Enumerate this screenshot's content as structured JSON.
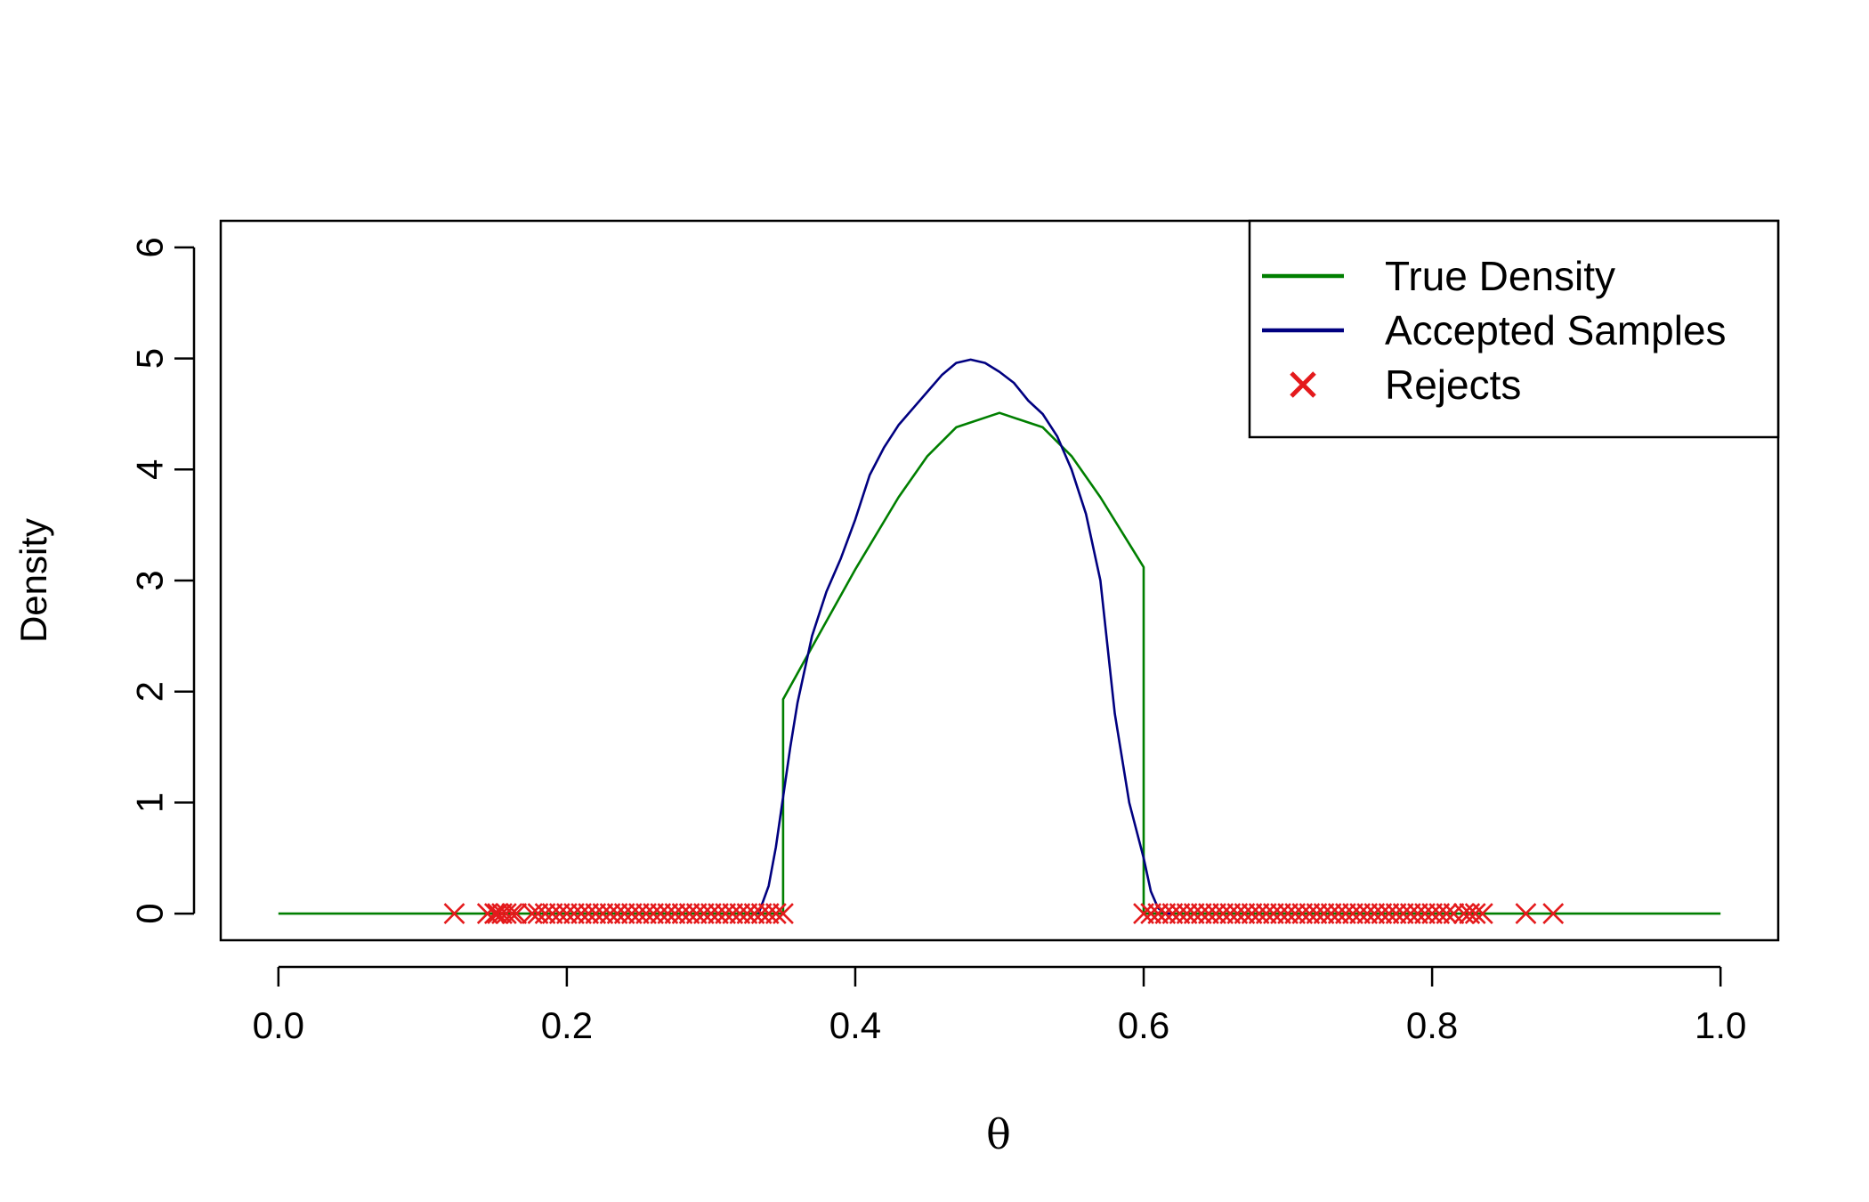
{
  "chart_data": {
    "type": "line",
    "title": "",
    "xlabel": "θ",
    "ylabel": "Density",
    "xlim": [
      -0.04,
      1.04
    ],
    "ylim": [
      -0.24,
      6.24
    ],
    "x_ticks": [
      0.0,
      0.2,
      0.4,
      0.6,
      0.8,
      1.0
    ],
    "x_tick_labels": [
      "0.0",
      "0.2",
      "0.4",
      "0.6",
      "0.8",
      "1.0"
    ],
    "y_ticks": [
      0,
      1,
      2,
      3,
      4,
      5,
      6
    ],
    "y_tick_labels": [
      "0",
      "1",
      "2",
      "3",
      "4",
      "5",
      "6"
    ],
    "grid": false,
    "legend_position": "top-right",
    "legend": [
      {
        "label": "True Density",
        "kind": "line",
        "color": "#007F00"
      },
      {
        "label": "Accepted Samples",
        "kind": "line",
        "color": "#000080"
      },
      {
        "label": "Rejects",
        "kind": "x",
        "color": "#E41A1C"
      }
    ],
    "series": [
      {
        "name": "True Density",
        "kind": "line",
        "color": "#007F00",
        "x": [
          0.0,
          0.35,
          0.35,
          0.37,
          0.4,
          0.43,
          0.45,
          0.47,
          0.5,
          0.53,
          0.55,
          0.57,
          0.6,
          0.6,
          1.0
        ],
        "y": [
          0.0,
          0.0,
          1.93,
          2.4,
          3.1,
          3.75,
          4.12,
          4.38,
          4.51,
          4.38,
          4.12,
          3.75,
          3.12,
          0.0,
          0.0
        ]
      },
      {
        "name": "Accepted Samples",
        "kind": "line",
        "color": "#000080",
        "x": [
          0.333,
          0.34,
          0.345,
          0.35,
          0.355,
          0.36,
          0.37,
          0.38,
          0.39,
          0.4,
          0.41,
          0.42,
          0.43,
          0.44,
          0.45,
          0.46,
          0.47,
          0.48,
          0.49,
          0.5,
          0.51,
          0.52,
          0.53,
          0.54,
          0.55,
          0.56,
          0.57,
          0.58,
          0.59,
          0.6,
          0.605,
          0.61,
          0.615,
          0.62
        ],
        "y": [
          0.0,
          0.25,
          0.6,
          1.05,
          1.5,
          1.9,
          2.5,
          2.9,
          3.2,
          3.55,
          3.95,
          4.2,
          4.4,
          4.55,
          4.7,
          4.85,
          4.96,
          4.99,
          4.96,
          4.88,
          4.78,
          4.62,
          4.5,
          4.3,
          4.0,
          3.6,
          3.0,
          1.8,
          1.0,
          0.5,
          0.2,
          0.05,
          0.0,
          0.0
        ]
      },
      {
        "name": "Rejects",
        "kind": "points",
        "marker": "x",
        "color": "#E41A1C",
        "x": [
          0.122,
          0.145,
          0.15,
          0.152,
          0.155,
          0.158,
          0.162,
          0.165,
          0.176,
          0.18,
          0.185,
          0.19,
          0.195,
          0.2,
          0.205,
          0.21,
          0.215,
          0.22,
          0.225,
          0.23,
          0.235,
          0.24,
          0.245,
          0.25,
          0.255,
          0.26,
          0.265,
          0.27,
          0.275,
          0.28,
          0.285,
          0.29,
          0.295,
          0.3,
          0.305,
          0.31,
          0.315,
          0.32,
          0.325,
          0.33,
          0.335,
          0.34,
          0.345,
          0.35,
          0.6,
          0.605,
          0.61,
          0.615,
          0.62,
          0.625,
          0.63,
          0.635,
          0.64,
          0.645,
          0.65,
          0.655,
          0.66,
          0.665,
          0.67,
          0.675,
          0.68,
          0.685,
          0.69,
          0.695,
          0.7,
          0.705,
          0.71,
          0.715,
          0.72,
          0.725,
          0.73,
          0.735,
          0.74,
          0.745,
          0.75,
          0.755,
          0.76,
          0.765,
          0.77,
          0.775,
          0.78,
          0.785,
          0.79,
          0.795,
          0.8,
          0.805,
          0.81,
          0.815,
          0.822,
          0.826,
          0.83,
          0.835,
          0.865,
          0.884
        ],
        "y": [
          0,
          0,
          0,
          0,
          0,
          0,
          0,
          0,
          0,
          0,
          0,
          0,
          0,
          0,
          0,
          0,
          0,
          0,
          0,
          0,
          0,
          0,
          0,
          0,
          0,
          0,
          0,
          0,
          0,
          0,
          0,
          0,
          0,
          0,
          0,
          0,
          0,
          0,
          0,
          0,
          0,
          0,
          0,
          0,
          0,
          0,
          0,
          0,
          0,
          0,
          0,
          0,
          0,
          0,
          0,
          0,
          0,
          0,
          0,
          0,
          0,
          0,
          0,
          0,
          0,
          0,
          0,
          0,
          0,
          0,
          0,
          0,
          0,
          0,
          0,
          0,
          0,
          0,
          0,
          0,
          0,
          0,
          0,
          0,
          0,
          0,
          0,
          0,
          0,
          0,
          0,
          0,
          0,
          0
        ]
      }
    ]
  }
}
